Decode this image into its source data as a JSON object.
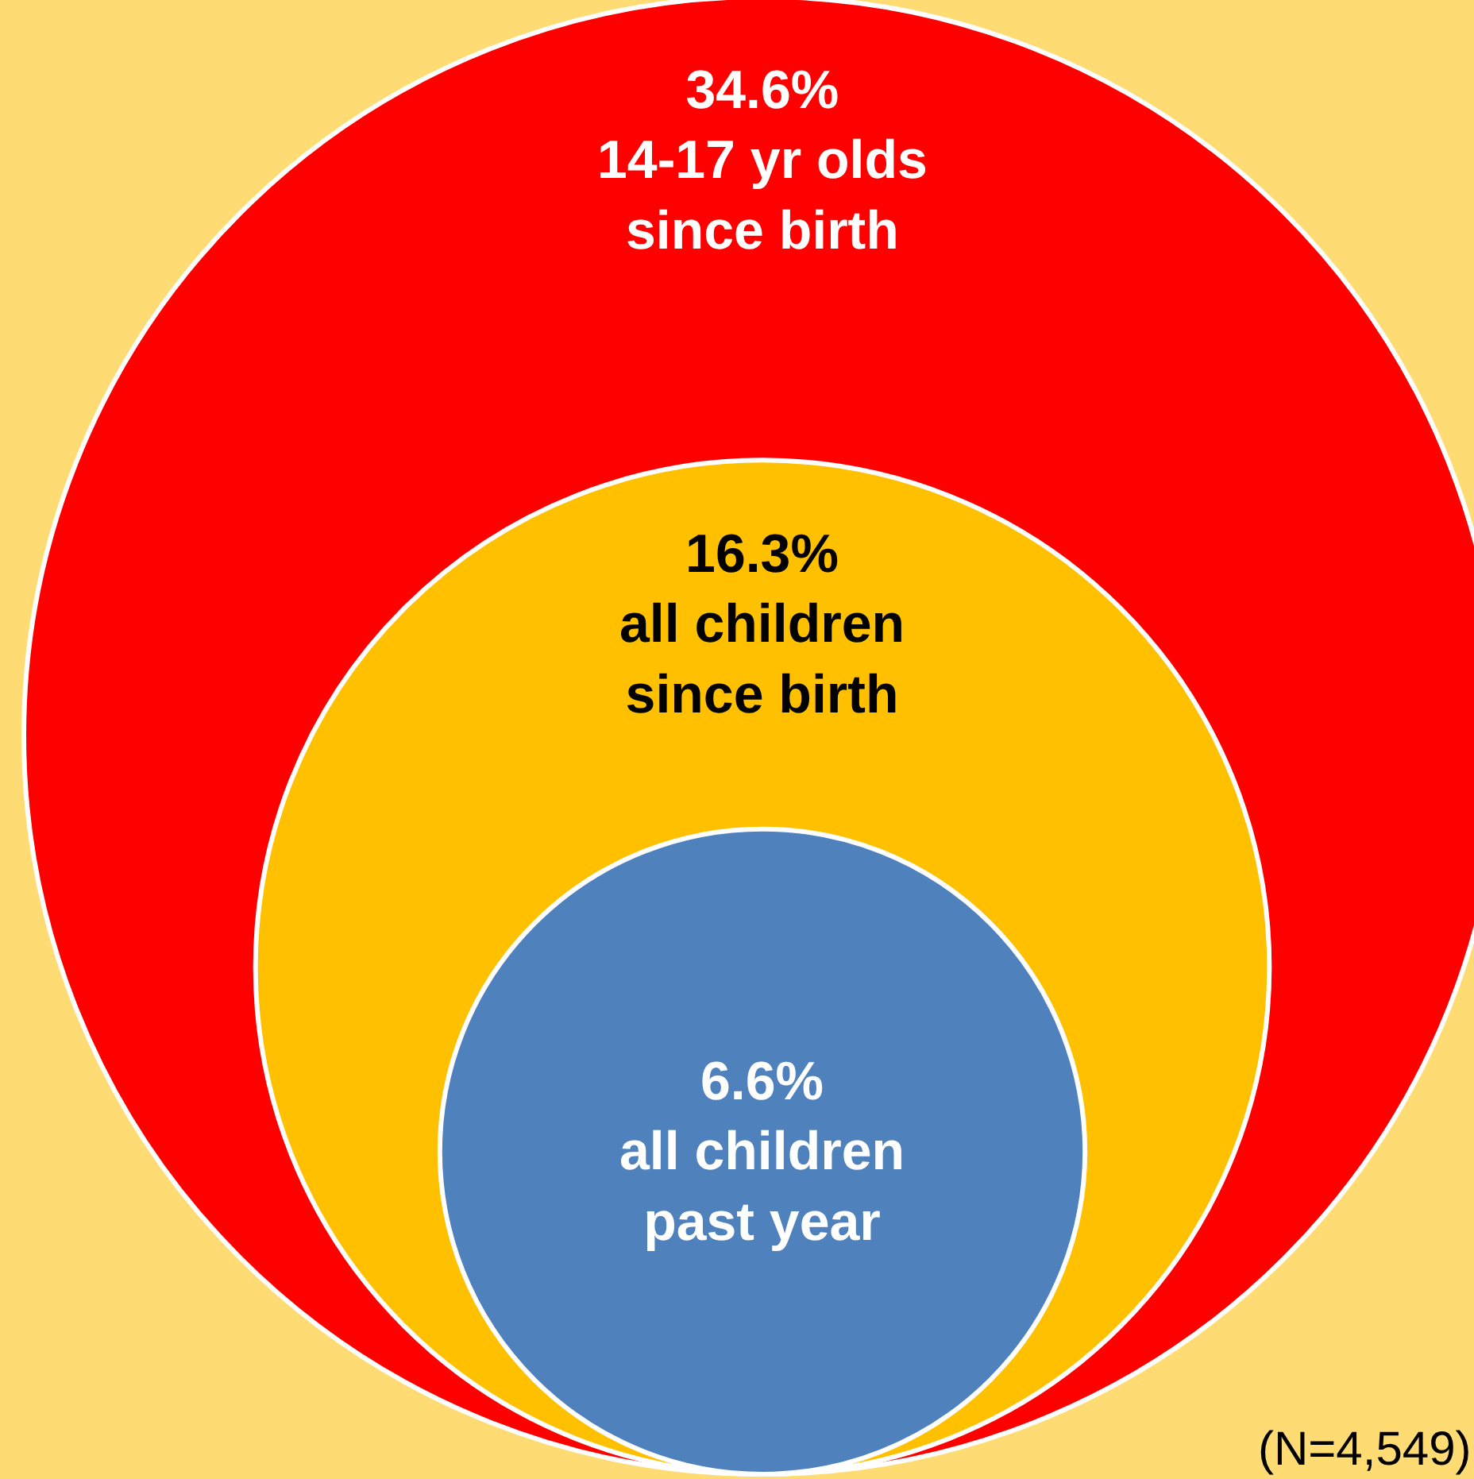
{
  "chart_data": {
    "type": "other",
    "categories": [
      "14-17 yr olds\nsince birth",
      "all children\nsince birth",
      "all children\npast year"
    ],
    "values": [
      34.6,
      16.3,
      6.6
    ],
    "value_labels": [
      "34.6%",
      "16.3%",
      "6.6%"
    ],
    "colors": [
      "#ff0000",
      "#ffc000",
      "#4f81bd"
    ],
    "annotations": [
      "(N=4,549)"
    ]
  }
}
